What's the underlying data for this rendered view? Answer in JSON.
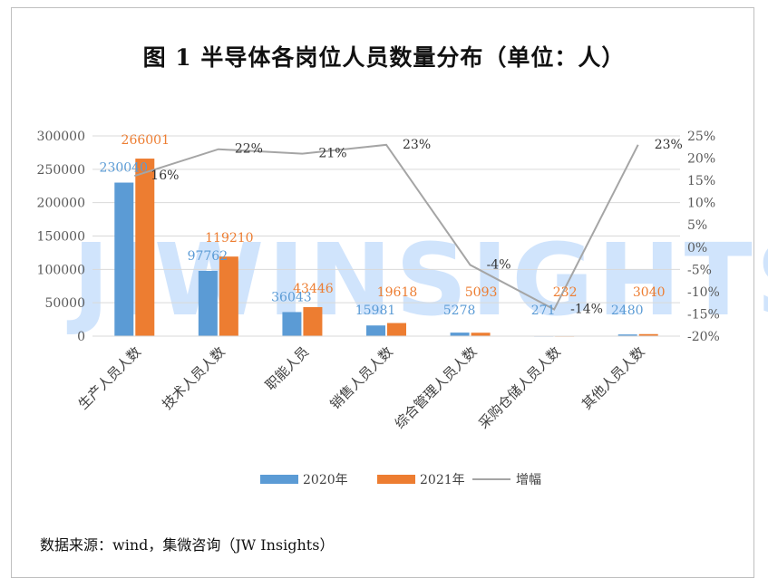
{
  "title": "图 1  半导体各岗位人员数量分布（单位：人）",
  "watermark": "JIWINSIGHTS",
  "source": "数据来源：wind，集微咨询（JW Insights）",
  "colors": {
    "series2020": "#5b9bd5",
    "series2021": "#ed7d31",
    "growth": "#a5a5a5",
    "grid": "#d9d9d9",
    "axis_text": "#595959"
  },
  "chart_data": {
    "type": "bar",
    "categories": [
      "生产人员人数",
      "技术人员人数",
      "职能人员",
      "销售人员人数",
      "综合管理人员人数",
      "采购仓储人员人数",
      "其他人员人数"
    ],
    "series": [
      {
        "name": "2020年",
        "type": "bar",
        "axis": "left",
        "values": [
          230040,
          97762,
          36043,
          15981,
          5278,
          271,
          2480
        ]
      },
      {
        "name": "2021年",
        "type": "bar",
        "axis": "left",
        "values": [
          266001,
          119210,
          43446,
          19618,
          5093,
          232,
          3040
        ]
      },
      {
        "name": "增幅",
        "type": "line",
        "axis": "right",
        "values": [
          16,
          22,
          21,
          23,
          -4,
          -14,
          23
        ],
        "labels": [
          "16%",
          "22%",
          "21%",
          "23%",
          "-4%",
          "-14%",
          "23%"
        ]
      }
    ],
    "ylim": [
      0,
      300000
    ],
    "yticks": [
      "0",
      "50000",
      "100000",
      "150000",
      "200000",
      "250000",
      "300000"
    ],
    "y2lim": [
      -20,
      25
    ],
    "y2ticks": [
      "-20%",
      "-15%",
      "-10%",
      "-5%",
      "0%",
      "5%",
      "10%",
      "15%",
      "20%",
      "25%"
    ],
    "legend_position": "bottom",
    "grid": true
  }
}
